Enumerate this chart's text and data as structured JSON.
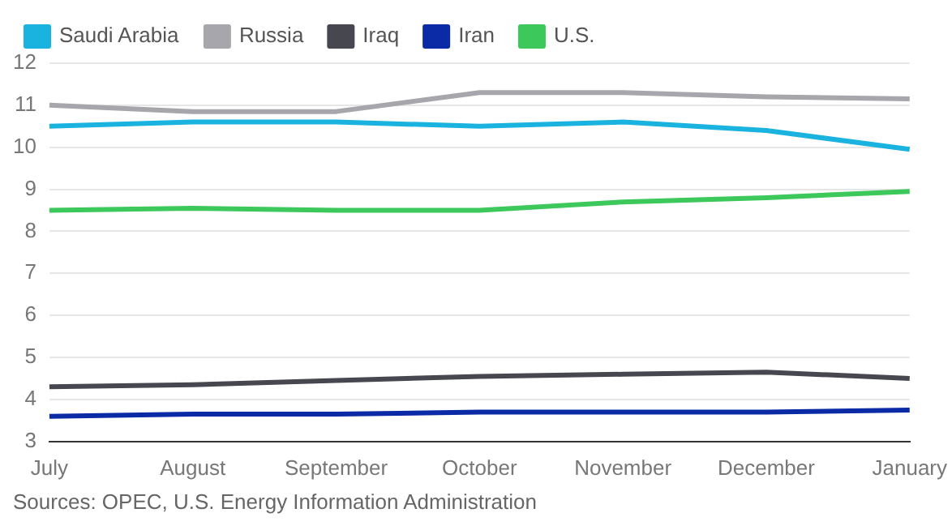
{
  "chart_data": {
    "type": "line",
    "categories": [
      "July",
      "August",
      "September",
      "October",
      "November",
      "December",
      "January"
    ],
    "series": [
      {
        "name": "Saudi Arabia",
        "color": "#1ab3e0",
        "values": [
          10.5,
          10.6,
          10.6,
          10.5,
          10.6,
          10.4,
          9.95
        ]
      },
      {
        "name": "Russia",
        "color": "#a7a6ad",
        "values": [
          11.0,
          10.85,
          10.85,
          11.3,
          11.3,
          11.2,
          11.15
        ]
      },
      {
        "name": "Iraq",
        "color": "#474750",
        "values": [
          4.3,
          4.35,
          4.45,
          4.55,
          4.6,
          4.65,
          4.5
        ]
      },
      {
        "name": "Iran",
        "color": "#0b2aa6",
        "values": [
          3.6,
          3.65,
          3.65,
          3.7,
          3.7,
          3.7,
          3.75
        ]
      },
      {
        "name": "U.S.",
        "color": "#3cc85a",
        "values": [
          8.5,
          8.55,
          8.5,
          8.5,
          8.7,
          8.8,
          8.95
        ]
      }
    ],
    "ylim": [
      3,
      12
    ],
    "yticks": [
      3,
      4,
      5,
      6,
      7,
      8,
      9,
      10,
      11,
      12
    ],
    "grid": "y",
    "legend": "top left",
    "marker": "none",
    "line_style": "solid",
    "annotations": [
      "Sources: OPEC, U.S. Energy Information Administration"
    ]
  }
}
